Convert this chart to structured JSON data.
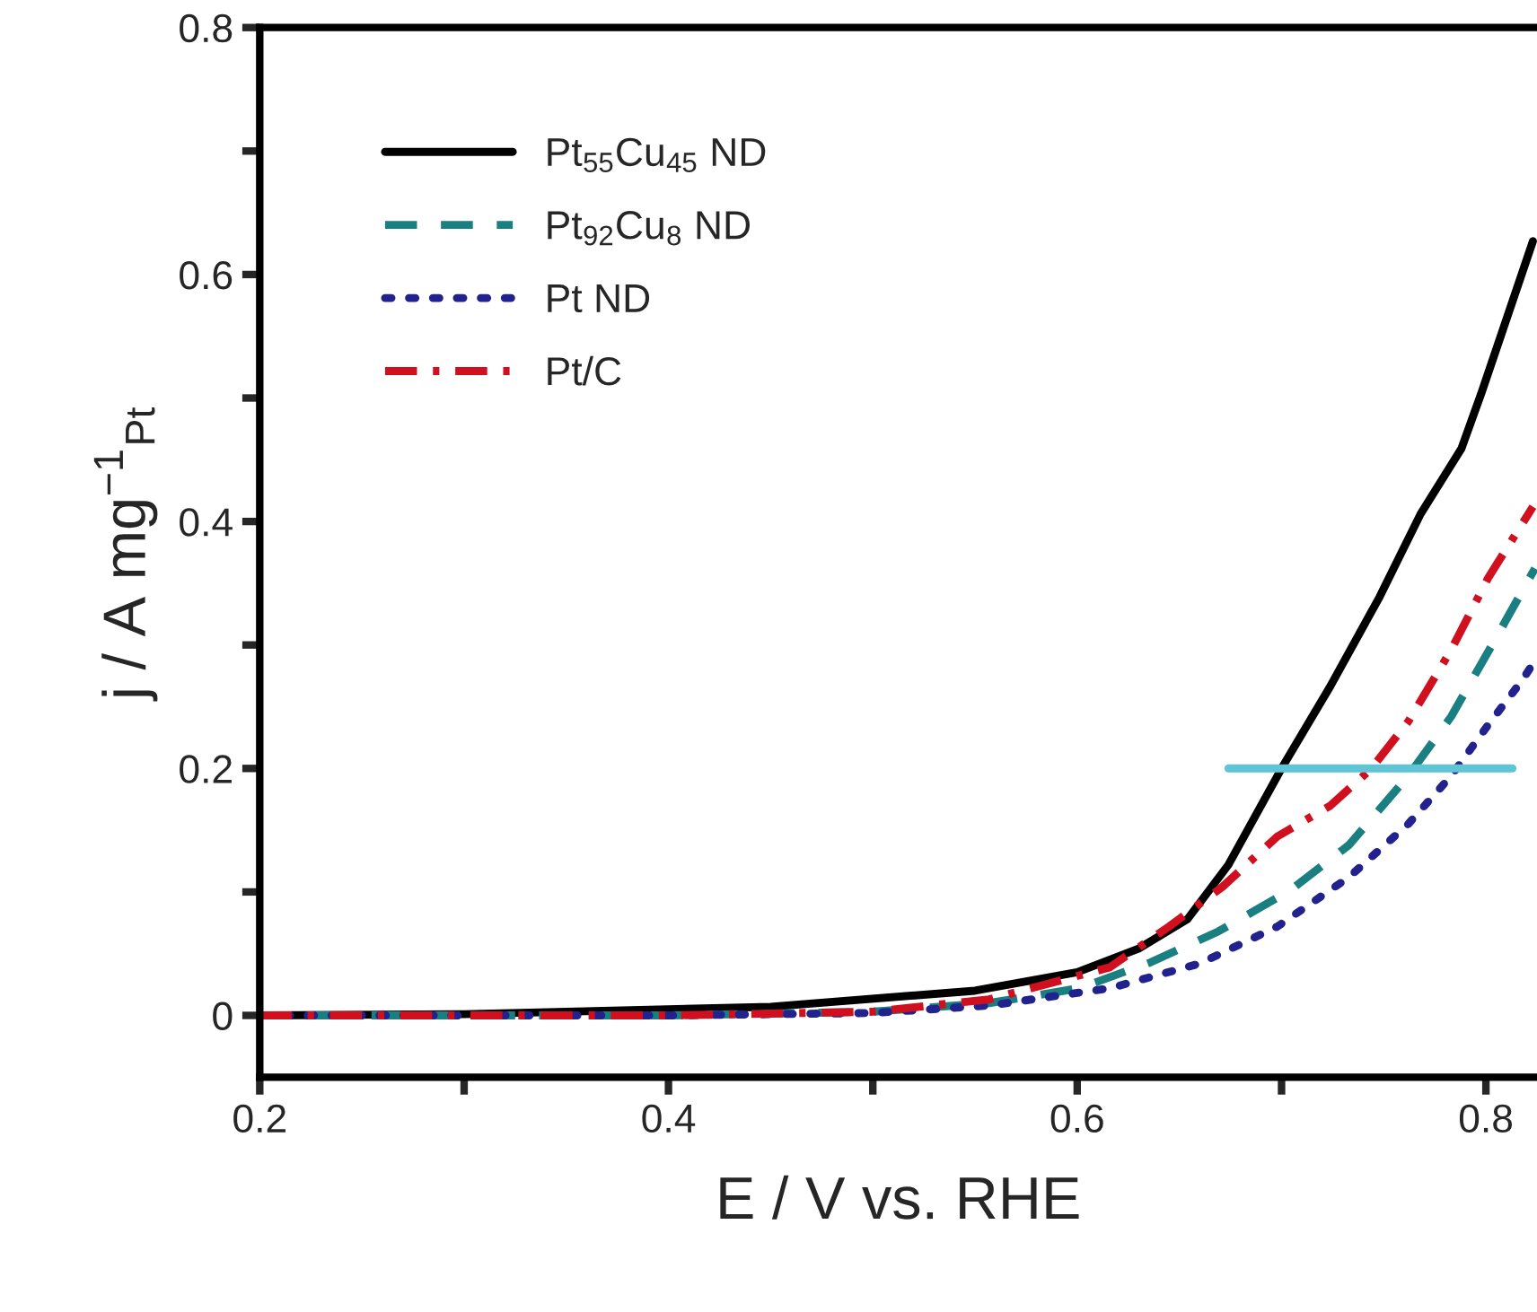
{
  "chart_data": {
    "type": "line",
    "xlabel": "E / V vs. RHE",
    "ylabel": "j / A mg$^{−1}$$_{Pt}$",
    "series": [
      {
        "name": "Pt$_{55}$Cu$_{45}$ ND",
        "color": "#000000",
        "line_style": "solid",
        "x": [
          0.2,
          0.3,
          0.35,
          0.45,
          0.55,
          0.6,
          0.63,
          0.654,
          0.674,
          0.7,
          0.724,
          0.748,
          0.768,
          0.788,
          0.798,
          0.823
        ],
        "values": [
          0,
          0.001,
          0.003,
          0.007,
          0.02,
          0.035,
          0.054,
          0.078,
          0.122,
          0.2,
          0.267,
          0.339,
          0.406,
          0.459,
          0.505,
          0.627
        ]
      },
      {
        "name": "Pt$_{92}$Cu$_{8}$ ND",
        "color": "#1a7f80",
        "line_style": "dashed",
        "x": [
          0.2,
          0.3,
          0.4,
          0.5,
          0.557,
          0.601,
          0.636,
          0.669,
          0.704,
          0.733,
          0.762,
          0.783,
          0.803,
          0.824
        ],
        "values": [
          0,
          0,
          0,
          0.003,
          0.01,
          0.022,
          0.043,
          0.068,
          0.101,
          0.138,
          0.194,
          0.242,
          0.3,
          0.362
        ]
      },
      {
        "name": "Pt ND",
        "color": "#22228f",
        "line_style": "dotted",
        "x": [
          0.2,
          0.3,
          0.4,
          0.5,
          0.557,
          0.616,
          0.66,
          0.698,
          0.733,
          0.762,
          0.783,
          0.801,
          0.818,
          0.825
        ],
        "values": [
          0,
          0,
          0,
          0.002,
          0.008,
          0.022,
          0.042,
          0.072,
          0.112,
          0.155,
          0.194,
          0.235,
          0.272,
          0.29
        ]
      },
      {
        "name": "Pt/C",
        "color": "#d0101e",
        "line_style": "dashdot",
        "x": [
          0.2,
          0.3,
          0.4,
          0.5,
          0.557,
          0.616,
          0.645,
          0.671,
          0.698,
          0.724,
          0.744,
          0.762,
          0.783,
          0.801,
          0.812,
          0.823
        ],
        "values": [
          0,
          0,
          0,
          0.003,
          0.013,
          0.039,
          0.072,
          0.104,
          0.145,
          0.17,
          0.2,
          0.238,
          0.296,
          0.354,
          0.383,
          0.412
        ]
      },
      {
        "color": "#5fc4d4",
        "line_style": "solid",
        "x": [
          0.674,
          0.813
        ],
        "values": [
          0.2,
          0.2
        ]
      }
    ],
    "xlim": [
      0.2,
      0.825
    ],
    "ylim": [
      -0.05,
      0.8
    ],
    "xticks": [
      0.2,
      {
        "value": 0.3,
        "label": null
      },
      0.4,
      {
        "value": 0.5,
        "label": null
      },
      0.6,
      {
        "value": 0.7,
        "label": null
      },
      0.8
    ],
    "yticks": [
      {
        "value": 0,
        "label": "0"
      },
      {
        "value": 0.1,
        "label": null
      },
      0.2,
      {
        "value": 0.3,
        "label": null
      },
      0.4,
      {
        "value": 0.5,
        "label": null
      },
      0.6,
      {
        "value": 0.7,
        "label": null
      },
      0.8
    ],
    "grid": false,
    "legend": "top left"
  }
}
